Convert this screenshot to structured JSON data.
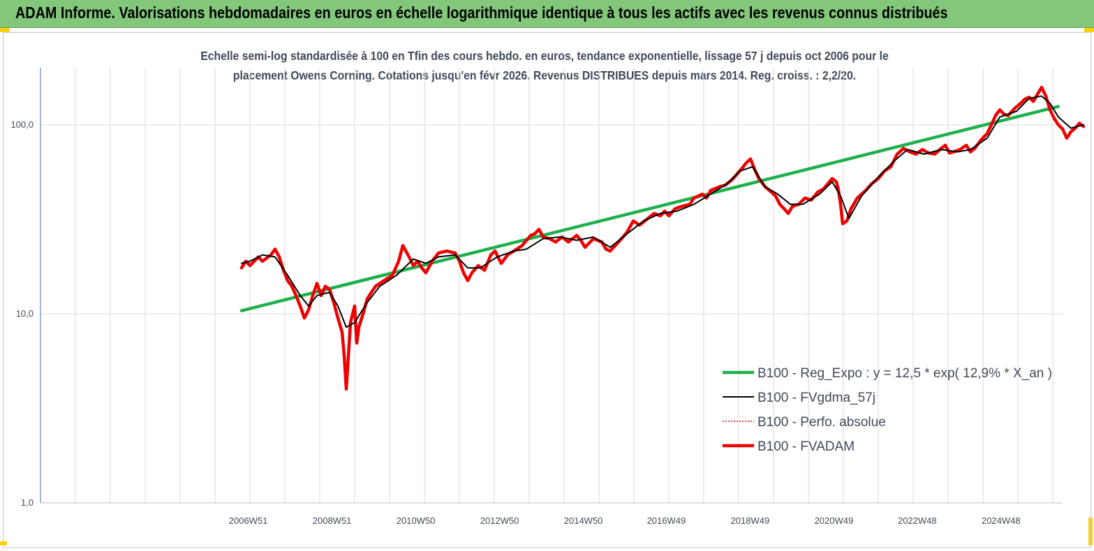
{
  "header": {
    "title": "ADAM Informe. Valorisations hebdomadaires en euros en échelle logarithmique identique à tous les actifs avec les revenus connus distribués"
  },
  "chart_data": {
    "type": "line",
    "subtitle_lines": [
      "Echelle semi-log standardisée à 100 en Tfin des cours hebdo. en euros, tendance exponentielle, lissage 57 j depuis oct 2006 pour le",
      "placement Owens Corning. Cotations jusqu'en févr 2026. Revenus DISTRIBUES depuis mars 2014. Reg. croiss. : 2,2/20."
    ],
    "y_scale": "log",
    "ylim": [
      1,
      200
    ],
    "y_ticks": [
      1,
      10,
      100
    ],
    "y_tick_labels": [
      "1,0",
      "10,0",
      "100,0"
    ],
    "xlim": [
      2002.0,
      2026.4
    ],
    "x_ticks": [
      2006.96,
      2008.96,
      2010.96,
      2012.96,
      2014.96,
      2016.94,
      2018.94,
      2020.94,
      2022.93,
      2024.93
    ],
    "x_tick_labels": [
      "2006W51",
      "2008W51",
      "2010W50",
      "2012W50",
      "2014W50",
      "2016W49",
      "2018W49",
      "2020W49",
      "2022W48",
      "2024W48"
    ],
    "grid": true,
    "legend_position": "bottom-right",
    "series": [
      {
        "name": "B100 - Reg_Expo : y = 12,5 * exp( 12,9% *  X_an )",
        "color": "#1db04c",
        "style": "thick",
        "points": [
          [
            2006.8,
            10.4
          ],
          [
            2026.3,
            125
          ]
        ]
      },
      {
        "name": "B100 - FVgdma_57j",
        "color": "#000000",
        "style": "solid",
        "points": [
          [
            2006.8,
            18.5
          ],
          [
            2007.0,
            19.0
          ],
          [
            2007.3,
            20.5
          ],
          [
            2007.6,
            20.0
          ],
          [
            2007.9,
            16.0
          ],
          [
            2008.2,
            12.5
          ],
          [
            2008.4,
            11.0
          ],
          [
            2008.6,
            12.5
          ],
          [
            2008.9,
            13.0
          ],
          [
            2009.1,
            11.0
          ],
          [
            2009.3,
            8.5
          ],
          [
            2009.5,
            9.0
          ],
          [
            2009.8,
            11.5
          ],
          [
            2010.1,
            14.0
          ],
          [
            2010.5,
            16.0
          ],
          [
            2010.9,
            19.5
          ],
          [
            2011.2,
            18.5
          ],
          [
            2011.5,
            20.0
          ],
          [
            2011.9,
            20.5
          ],
          [
            2012.2,
            17.5
          ],
          [
            2012.5,
            17.5
          ],
          [
            2012.9,
            20.0
          ],
          [
            2013.3,
            21.5
          ],
          [
            2013.6,
            22.0
          ],
          [
            2014.0,
            25.0
          ],
          [
            2014.4,
            25.5
          ],
          [
            2014.8,
            24.5
          ],
          [
            2015.2,
            25.5
          ],
          [
            2015.6,
            22.5
          ],
          [
            2016.0,
            26.5
          ],
          [
            2016.4,
            31.0
          ],
          [
            2016.8,
            34.0
          ],
          [
            2017.2,
            35.0
          ],
          [
            2017.6,
            38.0
          ],
          [
            2018.0,
            43.0
          ],
          [
            2018.4,
            49.0
          ],
          [
            2018.7,
            57.0
          ],
          [
            2019.0,
            60.0
          ],
          [
            2019.3,
            47.0
          ],
          [
            2019.6,
            43.0
          ],
          [
            2019.9,
            38.0
          ],
          [
            2020.2,
            38.0
          ],
          [
            2020.6,
            43.0
          ],
          [
            2020.9,
            50.0
          ],
          [
            2021.1,
            42.0
          ],
          [
            2021.3,
            32.0
          ],
          [
            2021.6,
            42.0
          ],
          [
            2022.0,
            53.0
          ],
          [
            2022.4,
            65.0
          ],
          [
            2022.7,
            74.0
          ],
          [
            2023.1,
            70.0
          ],
          [
            2023.5,
            74.0
          ],
          [
            2023.9,
            72.0
          ],
          [
            2024.2,
            74.0
          ],
          [
            2024.6,
            85.0
          ],
          [
            2024.9,
            110.0
          ],
          [
            2025.3,
            118.0
          ],
          [
            2025.6,
            138.0
          ],
          [
            2025.9,
            142.0
          ],
          [
            2026.1,
            130.0
          ],
          [
            2026.3,
            110.0
          ],
          [
            2026.6,
            96.0
          ],
          [
            2026.9,
            100.0
          ]
        ]
      },
      {
        "name": "B100 - Perfo. absolue",
        "color": "#e00000",
        "style": "dotted",
        "points": []
      },
      {
        "name": "B100 - FVADAM",
        "color": "#ee0000",
        "style": "thick",
        "points": [
          [
            2006.8,
            17.5
          ],
          [
            2006.9,
            19.0
          ],
          [
            2007.0,
            18.0
          ],
          [
            2007.2,
            20.0
          ],
          [
            2007.3,
            19.0
          ],
          [
            2007.5,
            20.5
          ],
          [
            2007.6,
            22.0
          ],
          [
            2007.7,
            20.0
          ],
          [
            2007.8,
            17.0
          ],
          [
            2007.9,
            15.0
          ],
          [
            2008.0,
            14.0
          ],
          [
            2008.1,
            12.5
          ],
          [
            2008.2,
            11.0
          ],
          [
            2008.3,
            9.5
          ],
          [
            2008.4,
            10.5
          ],
          [
            2008.5,
            12.5
          ],
          [
            2008.6,
            14.5
          ],
          [
            2008.7,
            12.5
          ],
          [
            2008.8,
            14.0
          ],
          [
            2008.9,
            13.5
          ],
          [
            2009.0,
            11.5
          ],
          [
            2009.1,
            9.5
          ],
          [
            2009.2,
            8.0
          ],
          [
            2009.25,
            6.0
          ],
          [
            2009.3,
            4.0
          ],
          [
            2009.35,
            6.0
          ],
          [
            2009.4,
            9.0
          ],
          [
            2009.5,
            11.0
          ],
          [
            2009.55,
            7.0
          ],
          [
            2009.6,
            8.5
          ],
          [
            2009.7,
            10.0
          ],
          [
            2009.8,
            12.0
          ],
          [
            2009.9,
            13.0
          ],
          [
            2010.0,
            14.0
          ],
          [
            2010.2,
            15.0
          ],
          [
            2010.4,
            16.0
          ],
          [
            2010.55,
            19.0
          ],
          [
            2010.65,
            23.0
          ],
          [
            2010.8,
            20.0
          ],
          [
            2010.9,
            18.0
          ],
          [
            2011.0,
            19.0
          ],
          [
            2011.1,
            17.5
          ],
          [
            2011.2,
            16.5
          ],
          [
            2011.35,
            19.0
          ],
          [
            2011.5,
            21.0
          ],
          [
            2011.7,
            21.5
          ],
          [
            2011.9,
            21.0
          ],
          [
            2012.0,
            19.0
          ],
          [
            2012.1,
            16.5
          ],
          [
            2012.2,
            15.0
          ],
          [
            2012.3,
            16.5
          ],
          [
            2012.45,
            18.0
          ],
          [
            2012.6,
            17.0
          ],
          [
            2012.75,
            20.5
          ],
          [
            2012.85,
            21.5
          ],
          [
            2013.0,
            18.5
          ],
          [
            2013.15,
            20.5
          ],
          [
            2013.3,
            21.5
          ],
          [
            2013.5,
            23.0
          ],
          [
            2013.7,
            26.0
          ],
          [
            2013.8,
            26.5
          ],
          [
            2013.9,
            28.0
          ],
          [
            2014.0,
            25.5
          ],
          [
            2014.15,
            25.0
          ],
          [
            2014.3,
            24.0
          ],
          [
            2014.45,
            25.5
          ],
          [
            2014.6,
            24.0
          ],
          [
            2014.8,
            26.0
          ],
          [
            2014.9,
            24.5
          ],
          [
            2015.0,
            22.5
          ],
          [
            2015.2,
            25.0
          ],
          [
            2015.4,
            24.0
          ],
          [
            2015.5,
            22.0
          ],
          [
            2015.6,
            21.5
          ],
          [
            2015.8,
            24.0
          ],
          [
            2016.0,
            27.0
          ],
          [
            2016.15,
            31.0
          ],
          [
            2016.3,
            29.5
          ],
          [
            2016.5,
            32.0
          ],
          [
            2016.65,
            34.0
          ],
          [
            2016.8,
            33.0
          ],
          [
            2016.9,
            35.0
          ],
          [
            2017.0,
            33.0
          ],
          [
            2017.15,
            36.0
          ],
          [
            2017.3,
            37.0
          ],
          [
            2017.5,
            38.0
          ],
          [
            2017.6,
            41.0
          ],
          [
            2017.8,
            43.0
          ],
          [
            2017.9,
            41.0
          ],
          [
            2018.0,
            45.0
          ],
          [
            2018.2,
            47.0
          ],
          [
            2018.35,
            48.0
          ],
          [
            2018.5,
            51.0
          ],
          [
            2018.6,
            54.0
          ],
          [
            2018.75,
            59.0
          ],
          [
            2018.85,
            63.0
          ],
          [
            2018.95,
            66.0
          ],
          [
            2019.05,
            58.0
          ],
          [
            2019.15,
            52.0
          ],
          [
            2019.3,
            47.0
          ],
          [
            2019.45,
            44.0
          ],
          [
            2019.55,
            42.0
          ],
          [
            2019.65,
            38.0
          ],
          [
            2019.75,
            36.0
          ],
          [
            2019.85,
            34.0
          ],
          [
            2019.95,
            37.0
          ],
          [
            2020.1,
            38.0
          ],
          [
            2020.25,
            41.0
          ],
          [
            2020.4,
            40.0
          ],
          [
            2020.55,
            44.0
          ],
          [
            2020.7,
            46.0
          ],
          [
            2020.8,
            49.0
          ],
          [
            2020.9,
            52.0
          ],
          [
            2021.0,
            50.0
          ],
          [
            2021.05,
            45.0
          ],
          [
            2021.1,
            38.0
          ],
          [
            2021.15,
            30.0
          ],
          [
            2021.25,
            31.0
          ],
          [
            2021.35,
            36.0
          ],
          [
            2021.5,
            41.0
          ],
          [
            2021.7,
            45.0
          ],
          [
            2021.85,
            49.0
          ],
          [
            2022.0,
            52.0
          ],
          [
            2022.15,
            57.0
          ],
          [
            2022.3,
            60.0
          ],
          [
            2022.45,
            70.0
          ],
          [
            2022.6,
            75.0
          ],
          [
            2022.75,
            72.0
          ],
          [
            2022.9,
            70.0
          ],
          [
            2023.05,
            74.0
          ],
          [
            2023.2,
            71.0
          ],
          [
            2023.35,
            70.0
          ],
          [
            2023.5,
            75.0
          ],
          [
            2023.6,
            78.0
          ],
          [
            2023.7,
            71.0
          ],
          [
            2023.8,
            72.0
          ],
          [
            2023.95,
            74.0
          ],
          [
            2024.1,
            78.0
          ],
          [
            2024.2,
            72.0
          ],
          [
            2024.3,
            75.0
          ],
          [
            2024.45,
            83.0
          ],
          [
            2024.6,
            90.0
          ],
          [
            2024.7,
            100.0
          ],
          [
            2024.8,
            112.0
          ],
          [
            2024.9,
            120.0
          ],
          [
            2025.0,
            114.0
          ],
          [
            2025.1,
            112.0
          ],
          [
            2025.25,
            122.0
          ],
          [
            2025.4,
            130.0
          ],
          [
            2025.5,
            137.0
          ],
          [
            2025.6,
            140.0
          ],
          [
            2025.7,
            133.0
          ],
          [
            2025.8,
            145.0
          ],
          [
            2025.9,
            158.0
          ],
          [
            2026.0,
            142.0
          ],
          [
            2026.1,
            120.0
          ],
          [
            2026.2,
            108.0
          ],
          [
            2026.3,
            100.0
          ],
          [
            2026.4,
            95.0
          ],
          [
            2026.5,
            85.0
          ],
          [
            2026.6,
            92.0
          ],
          [
            2026.7,
            96.0
          ],
          [
            2026.8,
            102.0
          ],
          [
            2026.9,
            98.0
          ]
        ]
      }
    ]
  }
}
